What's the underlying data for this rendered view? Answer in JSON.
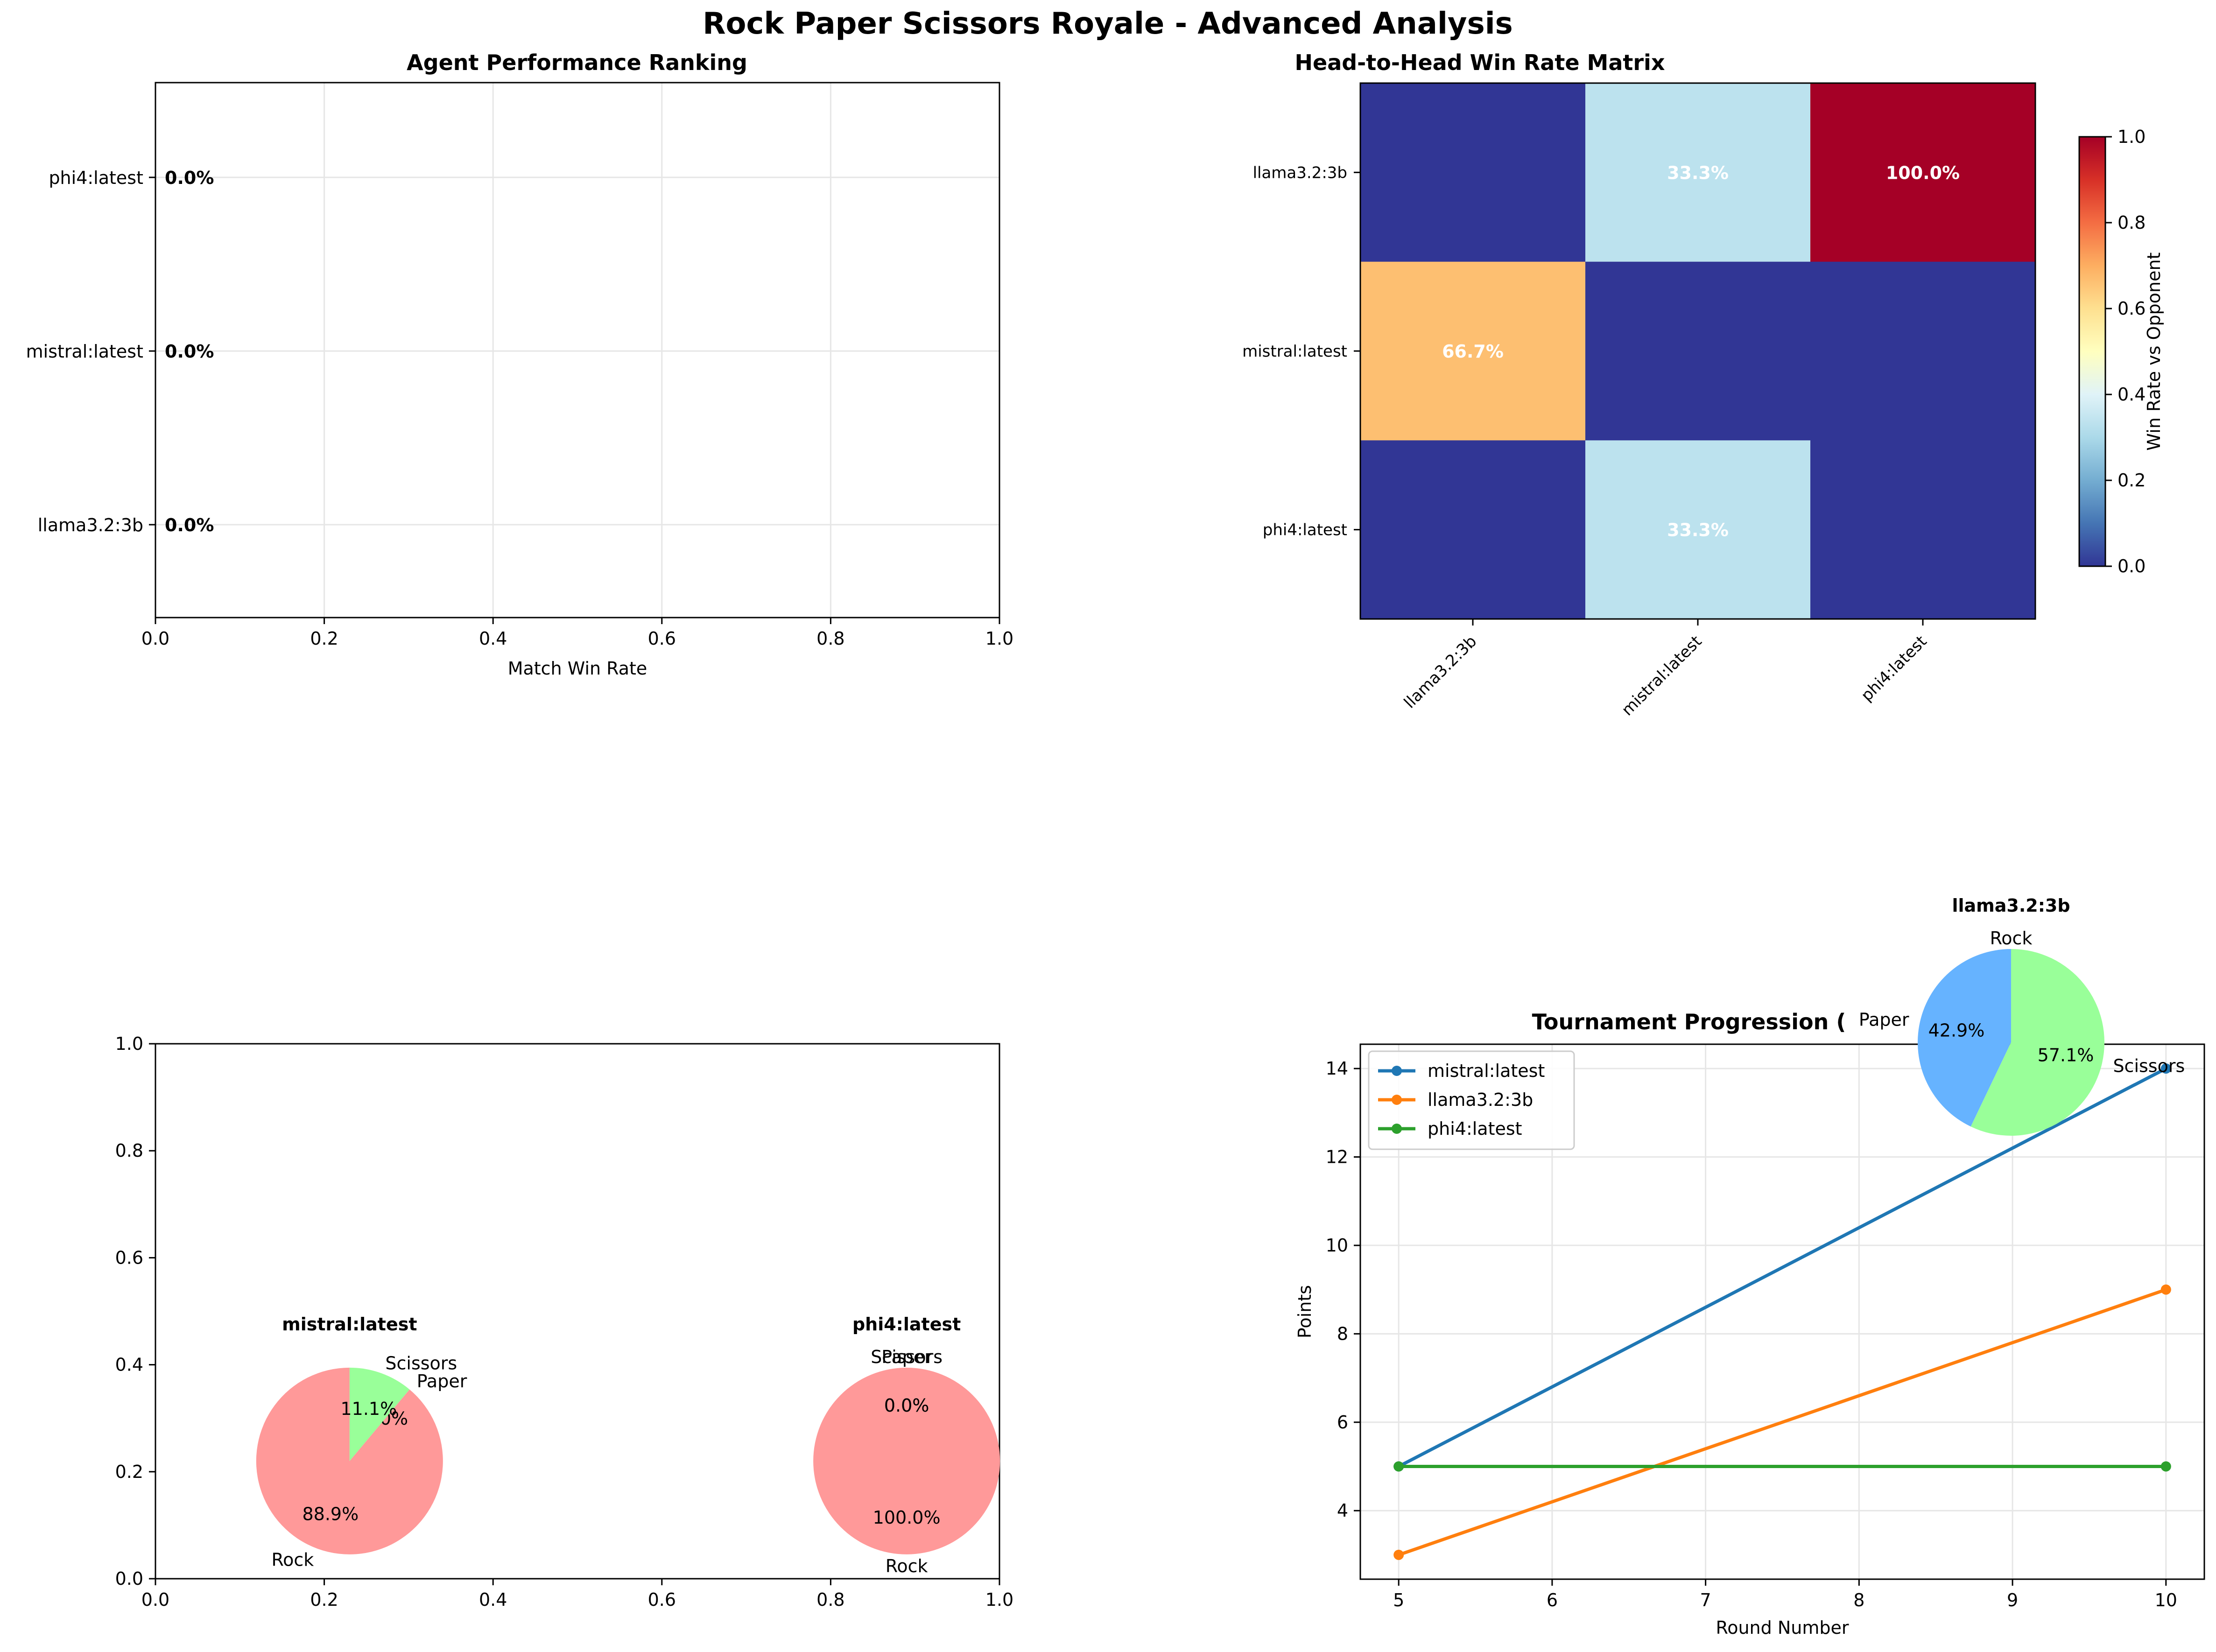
{
  "figure": {
    "suptitle": "Rock Paper Scissors Royale - Advanced Analysis"
  },
  "chart_data": [
    {
      "id": "ranking",
      "type": "bar",
      "orientation": "horizontal",
      "title": "Agent Performance Ranking",
      "xlabel": "Match Win Rate",
      "ylabel": "",
      "xlim": [
        0,
        1
      ],
      "x_ticks": [
        "0.0",
        "0.2",
        "0.4",
        "0.6",
        "0.8",
        "1.0"
      ],
      "grid": true,
      "categories": [
        "phi4:latest",
        "mistral:latest",
        "llama3.2:3b"
      ],
      "values": [
        0.0,
        0.0,
        0.0
      ],
      "value_labels": [
        "0.0%",
        "0.0%",
        "0.0%"
      ]
    },
    {
      "id": "h2h",
      "type": "heatmap",
      "title": "Head-to-Head Win Rate Matrix",
      "rows": [
        "llama3.2:3b",
        "mistral:latest",
        "phi4:latest"
      ],
      "columns": [
        "llama3.2:3b",
        "mistral:latest",
        "phi4:latest"
      ],
      "values": [
        [
          0.0,
          0.333,
          1.0
        ],
        [
          0.667,
          0.0,
          0.0
        ],
        [
          0.0,
          0.333,
          0.0
        ]
      ],
      "cell_labels": [
        [
          "",
          "33.3%",
          "100.0%"
        ],
        [
          "66.7%",
          "",
          ""
        ],
        [
          "",
          "33.3%",
          ""
        ]
      ],
      "colormap": "RdYlBu_r",
      "colorbar": {
        "label": "Win Rate vs Opponent",
        "range": [
          0,
          1
        ],
        "ticks": [
          "0.0",
          "0.2",
          "0.4",
          "0.6",
          "0.8",
          "1.0"
        ]
      }
    },
    {
      "id": "moves",
      "type": "pie",
      "title": "",
      "xlim": [
        0,
        1
      ],
      "ylim": [
        0,
        1
      ],
      "x_ticks": [
        "0.0",
        "0.2",
        "0.4",
        "0.6",
        "0.8",
        "1.0"
      ],
      "y_ticks": [
        "0.0",
        "0.2",
        "0.4",
        "0.6",
        "0.8",
        "1.0"
      ],
      "colors": {
        "Rock": "#ff9999",
        "Paper": "#66b3ff",
        "Scissors": "#99ff99"
      },
      "pies": [
        {
          "agent": "mistral:latest",
          "center": [
            0.23,
            0.22
          ],
          "slices": [
            {
              "label": "Rock",
              "value": 88.9,
              "pct": "88.9%"
            },
            {
              "label": "Paper",
              "value": 0.0,
              "pct": "0.0%"
            },
            {
              "label": "Scissors",
              "value": 11.1,
              "pct": "11.1%"
            }
          ]
        },
        {
          "agent": "phi4:latest",
          "center": [
            0.89,
            0.22
          ],
          "slices": [
            {
              "label": "Rock",
              "value": 100.0,
              "pct": "100.0%"
            },
            {
              "label": "Paper",
              "value": 0.0,
              "pct": "0.0%"
            },
            {
              "label": "Scissors",
              "value": 0.0,
              "pct": "0.0%"
            }
          ]
        },
        {
          "agent": "llama3.2:3b",
          "overlay": true,
          "slices": [
            {
              "label": "Rock",
              "value": 0.0,
              "pct": "0.0%"
            },
            {
              "label": "Paper",
              "value": 42.9,
              "pct": "42.9%"
            },
            {
              "label": "Scissors",
              "value": 57.1,
              "pct": "57.1%"
            }
          ]
        }
      ]
    },
    {
      "id": "progression",
      "type": "line",
      "title": "Tournament Progression (",
      "xlabel": "Round Number",
      "ylabel": "Points",
      "xlim": [
        4.75,
        10.25
      ],
      "ylim": [
        2.45,
        14.55
      ],
      "x_ticks": [
        5,
        6,
        7,
        8,
        9,
        10
      ],
      "y_ticks": [
        4,
        6,
        8,
        10,
        12,
        14
      ],
      "grid": true,
      "legend": "upper-left",
      "x": [
        5,
        10
      ],
      "series": [
        {
          "name": "mistral:latest",
          "values": [
            5,
            14
          ],
          "color": "#1f77b4"
        },
        {
          "name": "llama3.2:3b",
          "values": [
            3,
            9
          ],
          "color": "#ff7f0e"
        },
        {
          "name": "phi4:latest",
          "values": [
            5,
            5
          ],
          "color": "#2ca02c"
        }
      ]
    }
  ]
}
